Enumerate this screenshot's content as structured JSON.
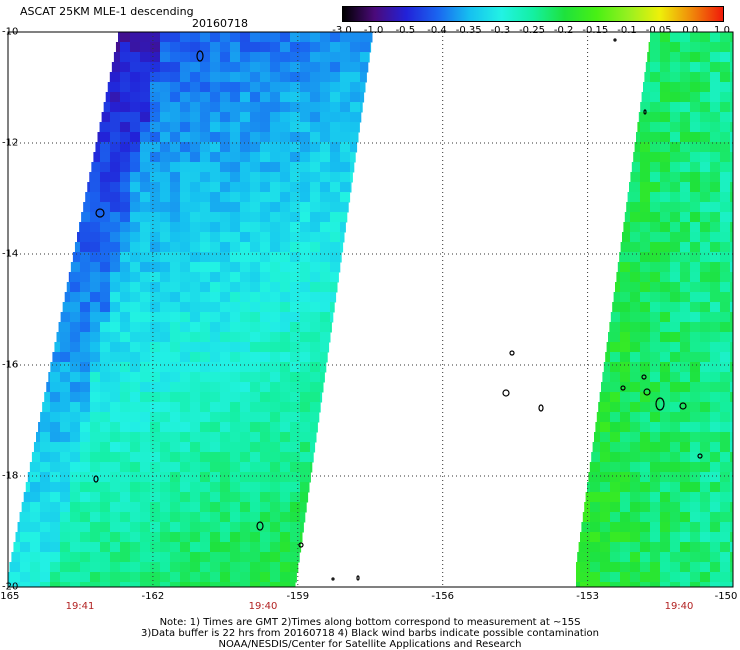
{
  "header": {
    "title": "ASCAT 25KM MLE-1 descending",
    "date": "20160718"
  },
  "colorbar": {
    "labels": [
      "-3.0",
      "-1.0",
      "-0.5",
      "-0.4",
      "-0.35",
      "-0.3",
      "-0.25",
      "-0.2",
      "-0.15",
      "-0.1",
      "-0.05",
      "0.0",
      "1.0"
    ],
    "colors": [
      "#000000",
      "#4b0a7a",
      "#2222d8",
      "#1a66f0",
      "#16c0f0",
      "#22f2e4",
      "#14f0a2",
      "#1ee23c",
      "#48f014",
      "#96f020",
      "#eef00a",
      "#f08a0a",
      "#f01a0a"
    ]
  },
  "axes": {
    "lat_labels": [
      "-10",
      "-12",
      "-14",
      "-16",
      "-18",
      "-20"
    ],
    "lon_labels": [
      "-165",
      "-162",
      "-159",
      "-156",
      "-153",
      "-150"
    ]
  },
  "times": [
    "19:41",
    "19:40",
    "19:40"
  ],
  "notes": {
    "line1": "Note: 1) Times are GMT 2)Times along bottom correspond to measurement at ~15S",
    "line2": "3)Data buffer is 22 hrs from 20160718 4) Black wind barbs indicate possible contamination",
    "line3": "NOAA/NESDIS/Center for Satellite Applications and Research"
  }
}
